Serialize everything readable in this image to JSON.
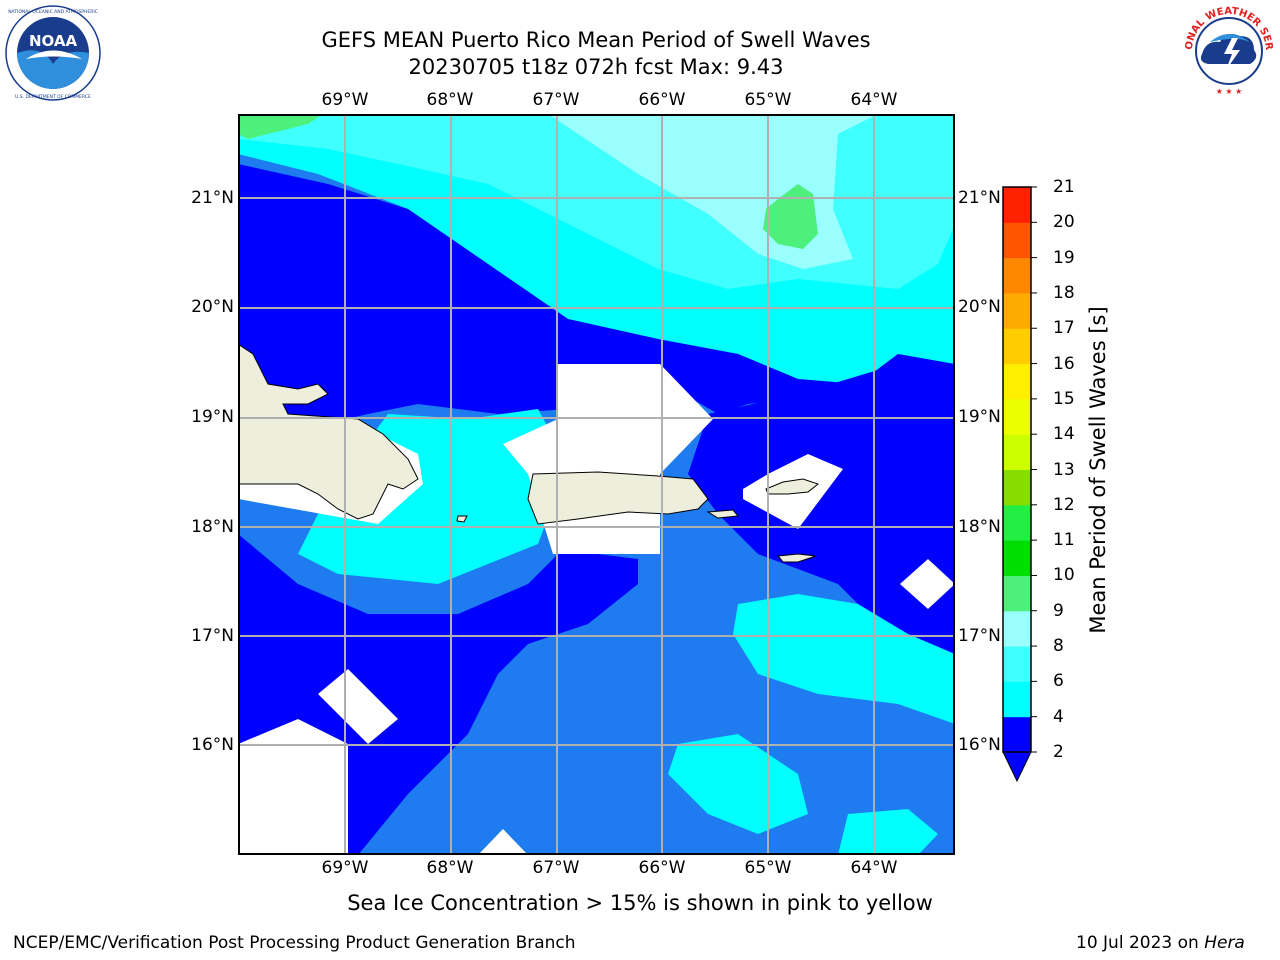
{
  "header": {
    "title_line1": "GEFS MEAN Puerto Rico Mean Period of Swell Waves",
    "title_line2": "20230705 t18z 072h fcst   Max: 9.43"
  },
  "logos": {
    "left": {
      "name": "NOAA",
      "ring_text": "NATIONAL OCEANIC AND ATMOSPHERIC ADMINISTRATION",
      "bottom_text": "U.S. DEPARTMENT OF COMMERCE",
      "center_text": "NOAA"
    },
    "right": {
      "name": "National Weather Service",
      "ring_text": "NATIONAL WEATHER SERVICE"
    }
  },
  "map": {
    "lon_labels": [
      "69°W",
      "68°W",
      "67°W",
      "66°W",
      "65°W",
      "64°W"
    ],
    "lat_labels": [
      "21°N",
      "20°N",
      "19°N",
      "18°N",
      "17°N",
      "16°N"
    ],
    "colors": {
      "land": "#eeeedc",
      "band_2_4": "#0000ff",
      "band_4_6": "#1e7cf0",
      "band_6_8": "#00ffff",
      "band_8_9": "#3fffff",
      "band_9_10": "#99ffff",
      "band_10_11": "#4df07a",
      "grid": "#b0b0b0"
    }
  },
  "colorbar": {
    "title": "Mean Period of Swell Waves [s]",
    "ticks": [
      "2",
      "4",
      "6",
      "8",
      "9",
      "10",
      "11",
      "12",
      "13",
      "14",
      "15",
      "16",
      "17",
      "18",
      "19",
      "20",
      "21"
    ],
    "colors": [
      "#0000ff",
      "#1e7cf0",
      "#00ffff",
      "#3fffff",
      "#99ffff",
      "#4df07a",
      "#00dd00",
      "#00ee00",
      "#44dd00",
      "#aadd00",
      "#ccff00",
      "#eeff00",
      "#ffee00",
      "#ffcc00",
      "#ffaa00",
      "#ff8800",
      "#ff5500",
      "#ff2200",
      "#ff0000"
    ],
    "extend_color": "#0000ff"
  },
  "caption": "Sea Ice Concentration > 15% is shown in pink to yellow",
  "footer": {
    "left": "NCEP/EMC/Verification Post Processing Product Generation Branch",
    "date": "10 Jul 2023 on ",
    "machine": "Hera"
  }
}
